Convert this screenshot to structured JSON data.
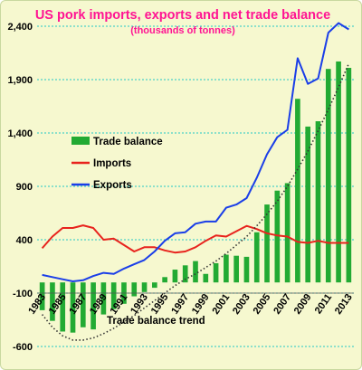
{
  "chart_data": {
    "type": "bar+line",
    "title": "US pork imports, exports and net trade balance",
    "subtitle": "(thousands of tonnes)",
    "x": [
      1983,
      1984,
      1985,
      1986,
      1987,
      1988,
      1989,
      1990,
      1991,
      1992,
      1993,
      1994,
      1995,
      1996,
      1997,
      1998,
      1999,
      2000,
      2001,
      2002,
      2003,
      2004,
      2005,
      2006,
      2007,
      2008,
      2009,
      2010,
      2011,
      2012,
      2013
    ],
    "x_tick_labels": [
      "1983",
      "1985",
      "1987",
      "1989",
      "1991",
      "1993",
      "1995",
      "1997",
      "1999",
      "2001",
      "2003",
      "2005",
      "2007",
      "2009",
      "2011",
      "2013"
    ],
    "y_ticks": [
      -600,
      -100,
      400,
      900,
      1400,
      1900,
      2400
    ],
    "y_tick_labels": [
      "-600",
      "-100",
      "400",
      "900",
      "1,400",
      "1,900",
      "2,400"
    ],
    "ylim": [
      -600,
      2400
    ],
    "grid": true,
    "legend_position": "left",
    "series": [
      {
        "name": "Trade balance",
        "type": "bar",
        "color": "#22aa33",
        "values": [
          -260,
          -360,
          -460,
          -470,
          -420,
          -440,
          -300,
          -250,
          -200,
          -130,
          -90,
          -50,
          50,
          120,
          160,
          200,
          80,
          180,
          260,
          250,
          240,
          470,
          730,
          860,
          930,
          1720,
          1460,
          1510,
          2000,
          2070,
          2010
        ]
      },
      {
        "name": "Imports",
        "type": "line",
        "color": "#e8231d",
        "values": [
          320,
          430,
          510,
          510,
          535,
          510,
          400,
          410,
          350,
          290,
          330,
          330,
          300,
          280,
          290,
          330,
          390,
          440,
          430,
          480,
          530,
          500,
          460,
          440,
          430,
          380,
          370,
          390,
          370,
          370,
          370
        ]
      },
      {
        "name": "Exports",
        "type": "line",
        "color": "#1a3ee8",
        "values": [
          70,
          50,
          30,
          10,
          20,
          60,
          90,
          80,
          130,
          170,
          210,
          290,
          390,
          460,
          470,
          550,
          570,
          570,
          700,
          730,
          790,
          980,
          1200,
          1360,
          1430,
          2100,
          1860,
          1910,
          2340,
          2430,
          2370
        ]
      },
      {
        "name": "Trade balance trend",
        "type": "trend",
        "style": "dotted",
        "color": "#333333",
        "values": [
          -300,
          -420,
          -500,
          -540,
          -540,
          -520,
          -480,
          -430,
          -370,
          -310,
          -240,
          -170,
          -100,
          -30,
          30,
          80,
          140,
          200,
          270,
          350,
          430,
          530,
          640,
          760,
          900,
          1060,
          1230,
          1420,
          1620,
          1830,
          2050
        ]
      }
    ],
    "annotations": [
      "Trade balance trend"
    ]
  }
}
